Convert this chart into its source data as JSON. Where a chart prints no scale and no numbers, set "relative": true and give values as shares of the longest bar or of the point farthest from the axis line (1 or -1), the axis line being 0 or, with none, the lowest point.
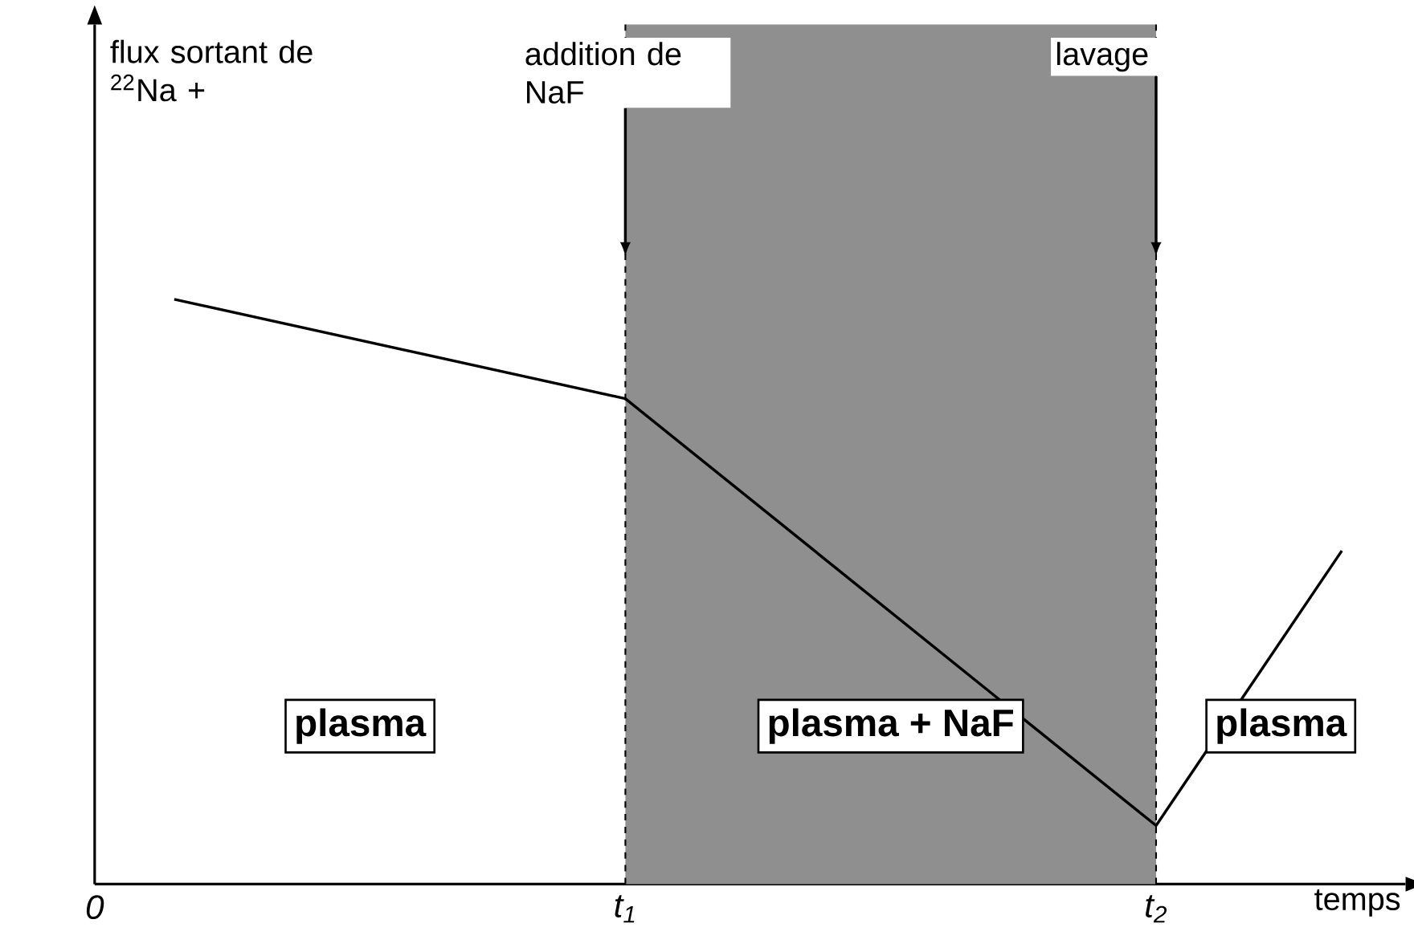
{
  "chart_data": {
    "type": "line",
    "relative": true,
    "xlabel": "temps",
    "x": [
      0.15,
      1.0,
      2.0,
      2.35
    ],
    "values": [
      1,
      0.83,
      0.1,
      0.57
    ],
    "color": "#000000",
    "xlim": [
      0,
      2.47
    ],
    "xticks": [
      {
        "value": 0,
        "label": "0"
      },
      {
        "value": 1,
        "label": "t$_{1}$"
      },
      {
        "value": 2,
        "label": "t$_{2}$"
      }
    ],
    "bands": [
      {
        "axis": "x",
        "from": 1,
        "to": 2,
        "color": "#8f8f8f"
      }
    ],
    "ref_lines": [
      {
        "axis": "x",
        "value": 1,
        "label": "addition de NaF",
        "line_style": "dashed"
      },
      {
        "axis": "x",
        "value": 2,
        "label": "lavage",
        "line_style": "dashed"
      }
    ],
    "annotations": [
      "flux sortant de $^{22}$Na +",
      "plasma",
      "plasma + NaF",
      "plasma"
    ],
    "marker": "none",
    "line_style": "solid"
  }
}
